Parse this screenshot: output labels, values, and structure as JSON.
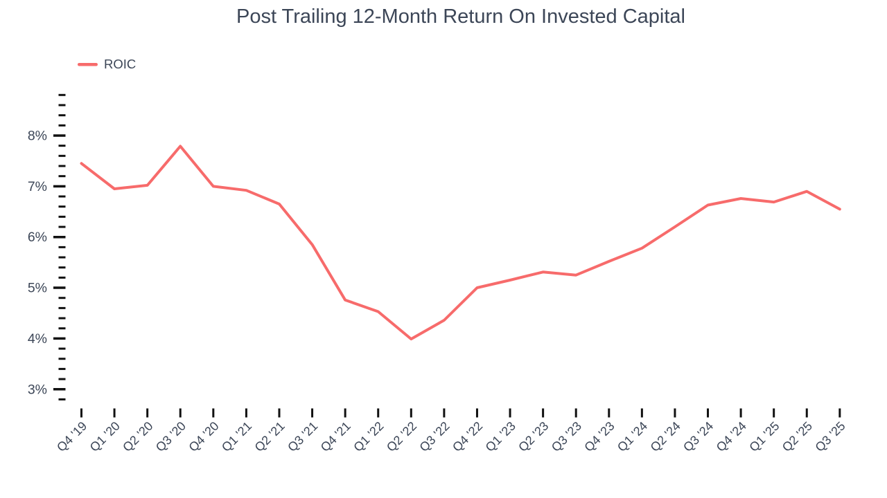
{
  "chart_data": {
    "type": "line",
    "title": "Post Trailing 12-Month Return On Invested Capital",
    "categories": [
      "Q4 '19",
      "Q1 '20",
      "Q2 '20",
      "Q3 '20",
      "Q4 '20",
      "Q1 '21",
      "Q2 '21",
      "Q3 '21",
      "Q4 '21",
      "Q1 '22",
      "Q2 '22",
      "Q3 '22",
      "Q4 '22",
      "Q1 '23",
      "Q2 '23",
      "Q3 '23",
      "Q4 '23",
      "Q1 '24",
      "Q2 '24",
      "Q3 '24",
      "Q4 '24",
      "Q1 '25",
      "Q2 '25",
      "Q3 '25"
    ],
    "series": [
      {
        "name": "ROIC",
        "values": [
          7.45,
          6.95,
          7.02,
          7.79,
          7.0,
          6.92,
          6.65,
          5.85,
          4.76,
          4.53,
          3.99,
          4.36,
          5.0,
          5.15,
          5.31,
          5.25,
          5.52,
          5.78,
          6.2,
          6.63,
          6.76,
          6.69,
          6.9,
          6.55
        ]
      }
    ],
    "unit": "%",
    "xlabel": "",
    "ylabel": "",
    "y_axis": {
      "tick_labels": [
        "3%",
        "4%",
        "5%",
        "6%",
        "7%",
        "8%"
      ],
      "major_min": 3,
      "major_max": 8,
      "major_step": 1,
      "minor_step": 0.2,
      "minor_min": 2.8,
      "minor_max": 8.8
    },
    "legend": {
      "position": "top-left",
      "entries": [
        "ROIC"
      ]
    },
    "grid": "off",
    "colors": {
      "line": "#F76B6B",
      "text": "#3C4657",
      "tick": "#111111"
    }
  }
}
